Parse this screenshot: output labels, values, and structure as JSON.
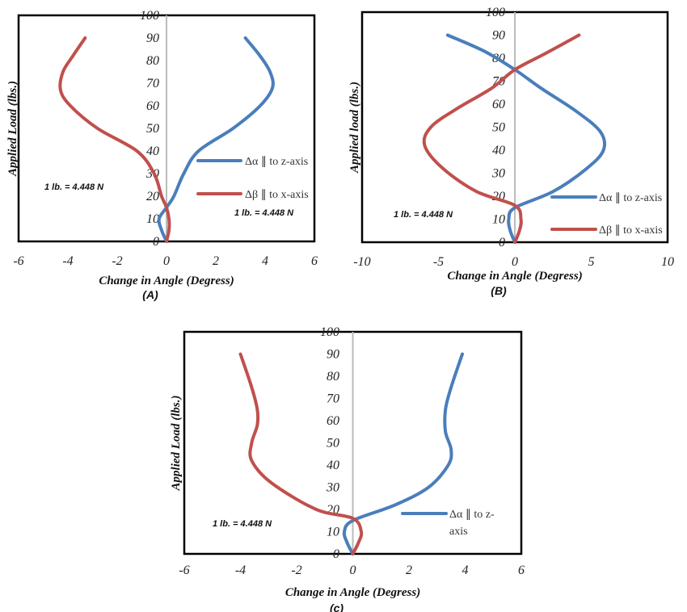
{
  "chart_data": [
    {
      "type": "line",
      "panel_label": "(A)",
      "xlabel": "Change in Angle (Degress)",
      "ylabel": "Applied Load (lbs.)",
      "xlim": [
        -6,
        6
      ],
      "ylim": [
        0,
        100
      ],
      "xticks": [
        "-6",
        "-4",
        "-2",
        "0",
        "2",
        "4",
        "6"
      ],
      "yticks": [
        "0",
        "10",
        "20",
        "30",
        "40",
        "50",
        "60",
        "70",
        "80",
        "90",
        "100"
      ],
      "annotations": [
        "1 lb. = 4.448 N",
        "1 lb. = 4.448 N"
      ],
      "legend": "right",
      "grid": false,
      "series": [
        {
          "name": "Δα ∥ to z-axis",
          "color": "#4a7ebb",
          "points": [
            [
              0,
              0
            ],
            [
              -0.2,
              5
            ],
            [
              -0.3,
              10
            ],
            [
              0,
              15
            ],
            [
              0.3,
              20
            ],
            [
              0.7,
              30
            ],
            [
              1.3,
              40
            ],
            [
              2.7,
              50
            ],
            [
              3.8,
              60
            ],
            [
              4.3,
              68
            ],
            [
              4.2,
              75
            ],
            [
              3.8,
              82
            ],
            [
              3.2,
              90
            ]
          ]
        },
        {
          "name": "Δβ ∥ to x-axis",
          "color": "#c0504d",
          "points": [
            [
              0,
              0
            ],
            [
              0.1,
              5
            ],
            [
              0.1,
              10
            ],
            [
              0,
              15
            ],
            [
              -0.2,
              20
            ],
            [
              -0.5,
              30
            ],
            [
              -1.2,
              40
            ],
            [
              -2.8,
              50
            ],
            [
              -3.9,
              60
            ],
            [
              -4.3,
              67
            ],
            [
              -4.2,
              75
            ],
            [
              -3.8,
              82
            ],
            [
              -3.3,
              90
            ]
          ]
        }
      ]
    },
    {
      "type": "line",
      "panel_label": "(B)",
      "xlabel": "Change in Angle (Degress)",
      "ylabel": "Applied load (lbs.)",
      "xlim": [
        -10,
        10
      ],
      "ylim": [
        0,
        100
      ],
      "xticks": [
        "-10",
        "-5",
        "0",
        "5",
        "10"
      ],
      "yticks": [
        "0",
        "10",
        "20",
        "30",
        "40",
        "50",
        "60",
        "70",
        "80",
        "90",
        "100"
      ],
      "annotations": [
        "1 lb. = 4.448 N"
      ],
      "legend": "bottom-right",
      "grid": false,
      "series": [
        {
          "name": "Δα ∥ to z-axis",
          "color": "#4a7ebb",
          "points": [
            [
              0,
              0
            ],
            [
              -0.3,
              5
            ],
            [
              -0.4,
              10
            ],
            [
              0,
              15
            ],
            [
              2.5,
              22
            ],
            [
              4.7,
              32
            ],
            [
              5.8,
              40
            ],
            [
              5.6,
              48
            ],
            [
              4,
              57
            ],
            [
              1.7,
              67
            ],
            [
              0,
              75
            ],
            [
              -2,
              83
            ],
            [
              -4.4,
              90
            ]
          ]
        },
        {
          "name": "Δβ ∥ to x-axis",
          "color": "#c0504d",
          "points": [
            [
              0,
              0
            ],
            [
              0.3,
              5
            ],
            [
              0.4,
              10
            ],
            [
              0,
              16
            ],
            [
              -2.5,
              22
            ],
            [
              -4.7,
              32
            ],
            [
              -5.9,
              42
            ],
            [
              -5.5,
              50
            ],
            [
              -3.8,
              58
            ],
            [
              -1.5,
              67
            ],
            [
              0,
              75
            ],
            [
              2,
              82
            ],
            [
              4.2,
              90
            ]
          ]
        }
      ]
    },
    {
      "type": "line",
      "panel_label": "(c)",
      "xlabel": "Change in Angle (Degress)",
      "ylabel": "Applied Load (lbs.)",
      "xlim": [
        -6,
        6
      ],
      "ylim": [
        0,
        100
      ],
      "xticks": [
        "-6",
        "-4",
        "-2",
        "0",
        "2",
        "4",
        "6"
      ],
      "yticks": [
        "0",
        "10",
        "20",
        "30",
        "40",
        "50",
        "60",
        "70",
        "80",
        "90",
        "100"
      ],
      "annotations": [
        "1 lb. = 4.448 N"
      ],
      "legend": "bottom-right",
      "grid": false,
      "series": [
        {
          "name": "Δα ∥ to z-axis",
          "legend_lines": [
            "Δα ∥ to z-",
            "axis"
          ],
          "color": "#4a7ebb",
          "points": [
            [
              0,
              0
            ],
            [
              -0.2,
              5
            ],
            [
              -0.3,
              10
            ],
            [
              0,
              15
            ],
            [
              1.5,
              22
            ],
            [
              2.7,
              30
            ],
            [
              3.4,
              40
            ],
            [
              3.5,
              47
            ],
            [
              3.3,
              55
            ],
            [
              3.3,
              65
            ],
            [
              3.5,
              75
            ],
            [
              3.9,
              90
            ]
          ]
        },
        {
          "color": "#c0504d",
          "points": [
            [
              0,
              0
            ],
            [
              0.2,
              5
            ],
            [
              0.3,
              10
            ],
            [
              0,
              16
            ],
            [
              -1.3,
              20
            ],
            [
              -2.9,
              32
            ],
            [
              -3.6,
              42
            ],
            [
              -3.6,
              50
            ],
            [
              -3.4,
              58
            ],
            [
              -3.4,
              65
            ],
            [
              -3.6,
              75
            ],
            [
              -4,
              90
            ]
          ]
        }
      ]
    }
  ]
}
